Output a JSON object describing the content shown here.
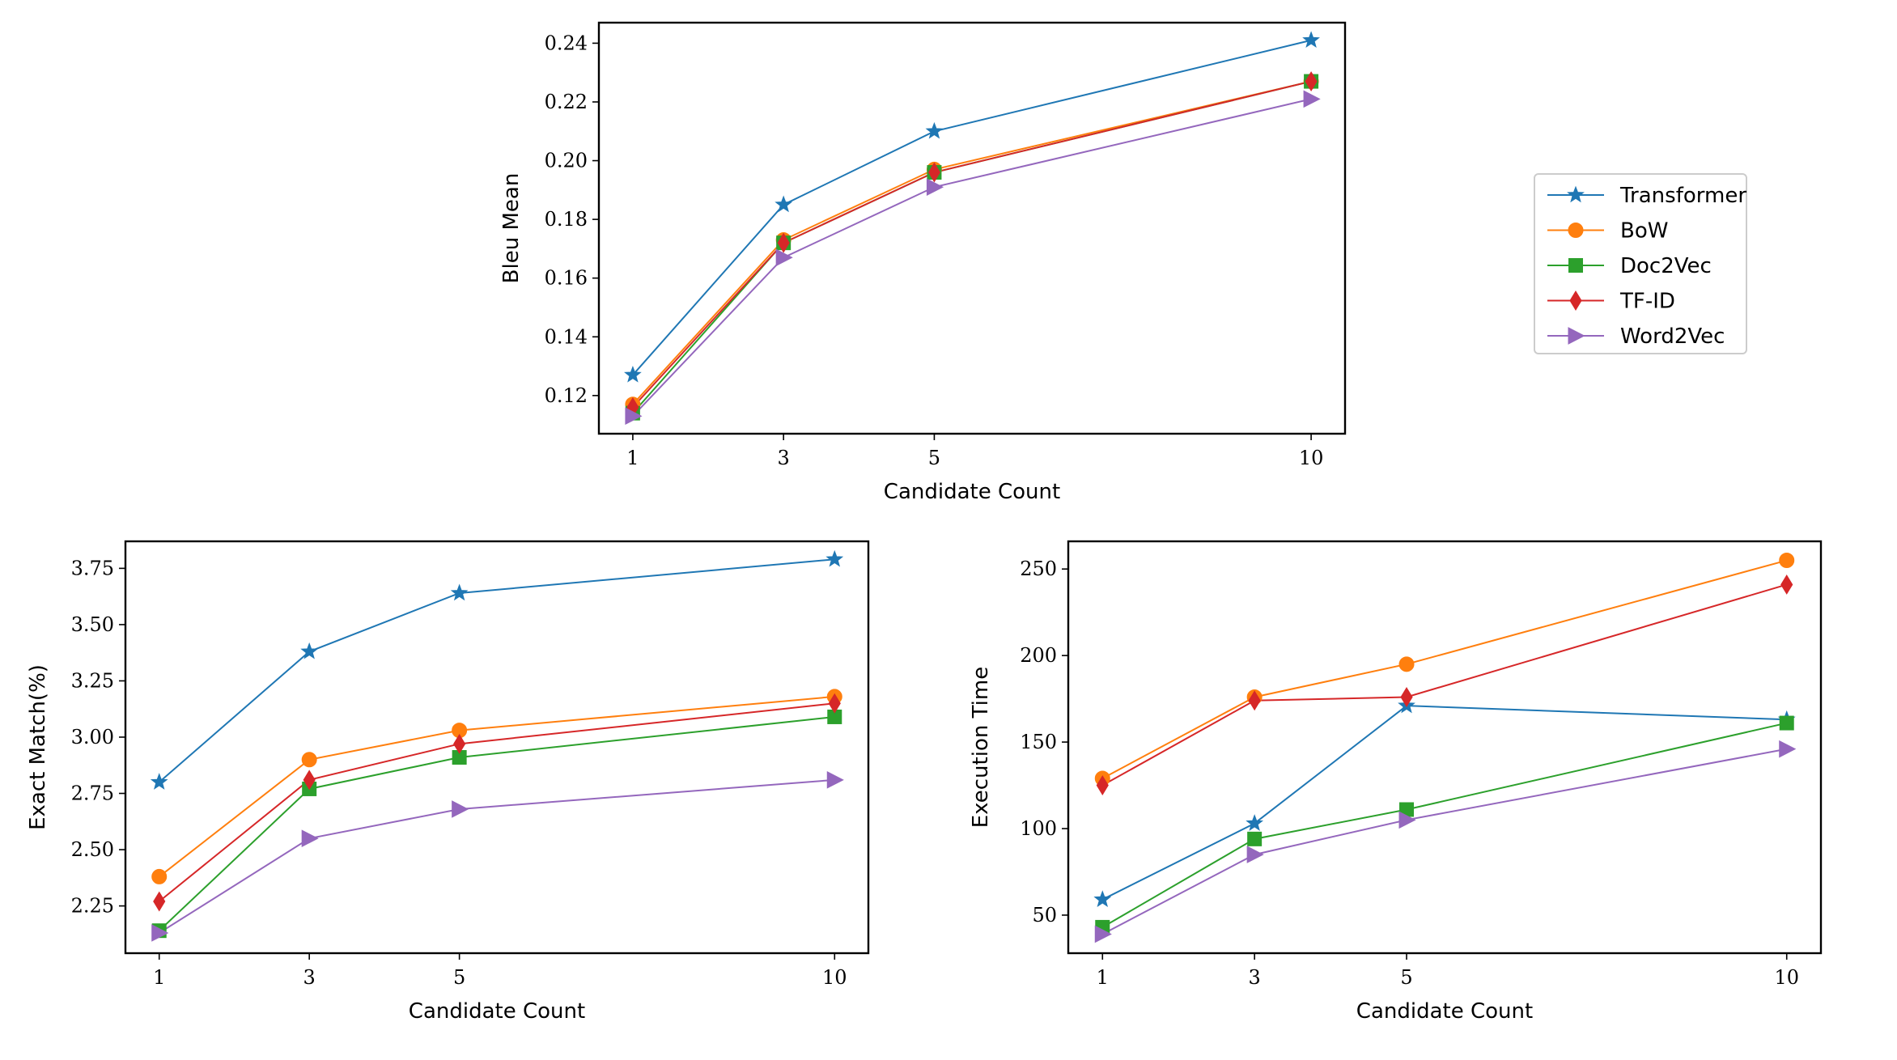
{
  "chart_data": [
    {
      "type": "line",
      "x": [
        1,
        3,
        5,
        10
      ],
      "xlabel": "Candidate Count",
      "ylabel": "Bleu Mean",
      "ylim": [
        0.107,
        0.247
      ],
      "xticks": [
        "1",
        "3",
        "5",
        "10"
      ],
      "yticks": [
        "0.12",
        "0.14",
        "0.16",
        "0.18",
        "0.20",
        "0.22",
        "0.24"
      ],
      "ytick_values": [
        0.12,
        0.14,
        0.16,
        0.18,
        0.2,
        0.22,
        0.24
      ],
      "series": [
        {
          "name": "Transformer",
          "values": [
            0.127,
            0.185,
            0.21,
            0.241
          ]
        },
        {
          "name": "BoW",
          "values": [
            0.117,
            0.173,
            0.197,
            0.227
          ]
        },
        {
          "name": "Doc2Vec",
          "values": [
            0.114,
            0.172,
            0.196,
            0.227
          ]
        },
        {
          "name": "TF-ID",
          "values": [
            0.116,
            0.172,
            0.196,
            0.227
          ]
        },
        {
          "name": "Word2Vec",
          "values": [
            0.113,
            0.167,
            0.191,
            0.221
          ]
        }
      ]
    },
    {
      "type": "line",
      "x": [
        1,
        3,
        5,
        10
      ],
      "xlabel": "Candidate Count",
      "ylabel": "Exact Match(%)",
      "ylim": [
        2.04,
        3.87
      ],
      "xticks": [
        "1",
        "3",
        "5",
        "10"
      ],
      "yticks": [
        "2.25",
        "2.50",
        "2.75",
        "3.00",
        "3.25",
        "3.50",
        "3.75"
      ],
      "ytick_values": [
        2.25,
        2.5,
        2.75,
        3.0,
        3.25,
        3.5,
        3.75
      ],
      "series": [
        {
          "name": "Transformer",
          "values": [
            2.8,
            3.38,
            3.64,
            3.79
          ]
        },
        {
          "name": "BoW",
          "values": [
            2.38,
            2.9,
            3.03,
            3.18
          ]
        },
        {
          "name": "Doc2Vec",
          "values": [
            2.14,
            2.77,
            2.91,
            3.09
          ]
        },
        {
          "name": "TF-ID",
          "values": [
            2.27,
            2.81,
            2.97,
            3.15
          ]
        },
        {
          "name": "Word2Vec",
          "values": [
            2.13,
            2.55,
            2.68,
            2.81
          ]
        }
      ]
    },
    {
      "type": "line",
      "x": [
        1,
        3,
        5,
        10
      ],
      "xlabel": "Candidate Count",
      "ylabel": "Execution Time",
      "ylim": [
        28,
        266
      ],
      "xticks": [
        "1",
        "3",
        "5",
        "10"
      ],
      "yticks": [
        "50",
        "100",
        "150",
        "200",
        "250"
      ],
      "ytick_values": [
        50,
        100,
        150,
        200,
        250
      ],
      "series": [
        {
          "name": "Transformer",
          "values": [
            59,
            103,
            171,
            163
          ]
        },
        {
          "name": "BoW",
          "values": [
            129,
            176,
            195,
            255
          ]
        },
        {
          "name": "Doc2Vec",
          "values": [
            43,
            94,
            111,
            161
          ]
        },
        {
          "name": "TF-ID",
          "values": [
            125,
            174,
            176,
            241
          ]
        },
        {
          "name": "Word2Vec",
          "values": [
            39,
            85,
            105,
            146
          ]
        }
      ]
    }
  ],
  "legend": {
    "position": "right",
    "items": [
      {
        "label": "Transformer",
        "color": "#1f77b4",
        "marker": "star"
      },
      {
        "label": "BoW",
        "color": "#ff7f0e",
        "marker": "circle"
      },
      {
        "label": "Doc2Vec",
        "color": "#2ca02c",
        "marker": "square"
      },
      {
        "label": "TF-ID",
        "color": "#d62728",
        "marker": "diamond"
      },
      {
        "label": "Word2Vec",
        "color": "#9467bd",
        "marker": "triangle-right"
      }
    ]
  }
}
